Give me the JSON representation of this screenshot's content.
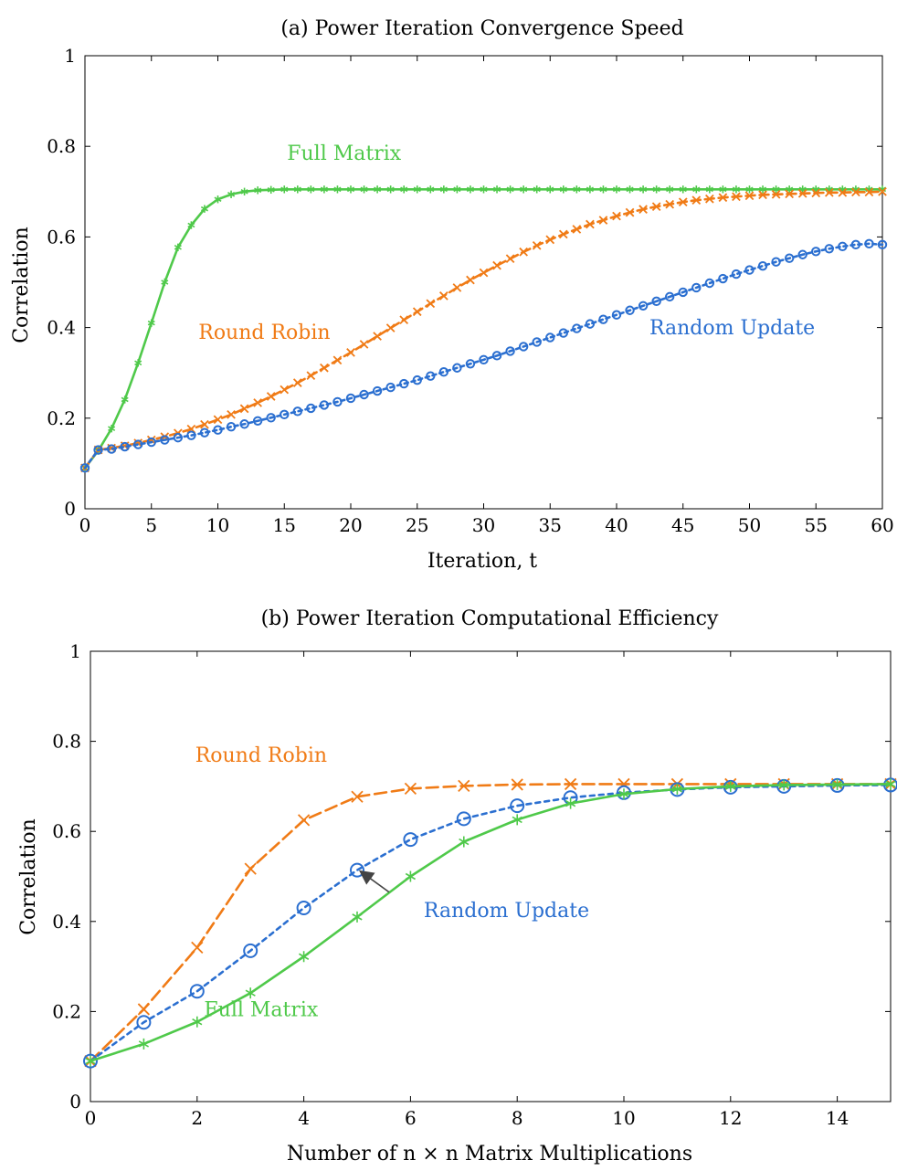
{
  "chart_data": [
    {
      "type": "line",
      "title": "(a) Power Iteration Convergence Speed",
      "xlabel": "Iteration, t",
      "ylabel": "Correlation",
      "xlim": [
        0,
        60
      ],
      "ylim": [
        0,
        1
      ],
      "xticks": [
        0,
        5,
        10,
        15,
        20,
        25,
        30,
        35,
        40,
        45,
        50,
        55,
        60
      ],
      "yticks": [
        0,
        0.2,
        0.4,
        0.6,
        0.8,
        1
      ],
      "ytick_labels": [
        "0",
        "0.2",
        "0.4",
        "0.6",
        "0.8",
        "1"
      ],
      "grid": false,
      "series": [
        {
          "name": "Full Matrix",
          "color": "#4fc94a",
          "marker": "asterisk",
          "dash": "solid",
          "label_anchor": [
            19.5,
            0.77
          ],
          "x": [
            0,
            1,
            2,
            3,
            4,
            5,
            6,
            7,
            8,
            9,
            10,
            11,
            12,
            13,
            14,
            15,
            16,
            17,
            18,
            19,
            20,
            21,
            22,
            23,
            24,
            25,
            26,
            27,
            28,
            29,
            30,
            31,
            32,
            33,
            34,
            35,
            36,
            37,
            38,
            39,
            40,
            41,
            42,
            43,
            44,
            45,
            46,
            47,
            48,
            49,
            50,
            51,
            52,
            53,
            54,
            55,
            56,
            57,
            58,
            59,
            60
          ],
          "values": [
            0.09,
            0.128,
            0.177,
            0.241,
            0.322,
            0.41,
            0.5,
            0.577,
            0.626,
            0.662,
            0.683,
            0.694,
            0.7,
            0.703,
            0.704,
            0.705,
            0.705,
            0.705,
            0.705,
            0.705,
            0.705,
            0.705,
            0.705,
            0.705,
            0.705,
            0.705,
            0.705,
            0.705,
            0.705,
            0.705,
            0.705,
            0.705,
            0.705,
            0.705,
            0.705,
            0.705,
            0.705,
            0.705,
            0.705,
            0.705,
            0.705,
            0.705,
            0.705,
            0.705,
            0.705,
            0.705,
            0.705,
            0.705,
            0.705,
            0.705,
            0.705,
            0.705,
            0.705,
            0.705,
            0.705,
            0.705,
            0.705,
            0.705,
            0.705,
            0.705,
            0.705
          ]
        },
        {
          "name": "Round Robin",
          "color": "#f07b16",
          "marker": "x",
          "dash": "dashed",
          "label_anchor": [
            13.5,
            0.375
          ],
          "x": [
            0,
            1,
            2,
            3,
            4,
            5,
            6,
            7,
            8,
            9,
            10,
            11,
            12,
            13,
            14,
            15,
            16,
            17,
            18,
            19,
            20,
            21,
            22,
            23,
            24,
            25,
            26,
            27,
            28,
            29,
            30,
            31,
            32,
            33,
            34,
            35,
            36,
            37,
            38,
            39,
            40,
            41,
            42,
            43,
            44,
            45,
            46,
            47,
            48,
            49,
            50,
            51,
            52,
            53,
            54,
            55,
            56,
            57,
            58,
            59,
            60
          ],
          "values": [
            0.09,
            0.13,
            0.134,
            0.139,
            0.145,
            0.152,
            0.159,
            0.167,
            0.176,
            0.186,
            0.197,
            0.208,
            0.221,
            0.234,
            0.248,
            0.263,
            0.278,
            0.294,
            0.311,
            0.328,
            0.345,
            0.363,
            0.381,
            0.399,
            0.417,
            0.435,
            0.453,
            0.47,
            0.488,
            0.505,
            0.521,
            0.537,
            0.552,
            0.567,
            0.581,
            0.594,
            0.606,
            0.617,
            0.628,
            0.637,
            0.646,
            0.654,
            0.661,
            0.667,
            0.672,
            0.677,
            0.681,
            0.684,
            0.687,
            0.689,
            0.691,
            0.693,
            0.694,
            0.695,
            0.696,
            0.697,
            0.698,
            0.698,
            0.699,
            0.699,
            0.7
          ]
        },
        {
          "name": "Random Update",
          "color": "#2b6fd0",
          "marker": "circle",
          "dash": "dotted",
          "label_anchor": [
            48.7,
            0.385
          ],
          "x": [
            0,
            1,
            2,
            3,
            4,
            5,
            6,
            7,
            8,
            9,
            10,
            11,
            12,
            13,
            14,
            15,
            16,
            17,
            18,
            19,
            20,
            21,
            22,
            23,
            24,
            25,
            26,
            27,
            28,
            29,
            30,
            31,
            32,
            33,
            34,
            35,
            36,
            37,
            38,
            39,
            40,
            41,
            42,
            43,
            44,
            45,
            46,
            47,
            48,
            49,
            50,
            51,
            52,
            53,
            54,
            55,
            56,
            57,
            58,
            59,
            60
          ],
          "values": [
            0.09,
            0.13,
            0.132,
            0.137,
            0.142,
            0.147,
            0.152,
            0.157,
            0.162,
            0.168,
            0.174,
            0.181,
            0.187,
            0.194,
            0.201,
            0.208,
            0.215,
            0.222,
            0.229,
            0.236,
            0.244,
            0.252,
            0.26,
            0.268,
            0.276,
            0.284,
            0.293,
            0.302,
            0.311,
            0.32,
            0.329,
            0.338,
            0.348,
            0.358,
            0.368,
            0.378,
            0.388,
            0.398,
            0.408,
            0.418,
            0.428,
            0.438,
            0.448,
            0.458,
            0.468,
            0.478,
            0.488,
            0.498,
            0.508,
            0.518,
            0.527,
            0.536,
            0.545,
            0.553,
            0.561,
            0.568,
            0.574,
            0.579,
            0.583,
            0.585,
            0.583
          ]
        }
      ]
    },
    {
      "type": "line",
      "title": "(b) Power Iteration Computational Efficiency",
      "xlabel": "Number of n × n Matrix Multiplications",
      "ylabel": "Correlation",
      "xlim": [
        0,
        15
      ],
      "ylim": [
        0,
        1
      ],
      "xticks": [
        0,
        2,
        4,
        6,
        8,
        10,
        12,
        14
      ],
      "yticks": [
        0,
        0.2,
        0.4,
        0.6,
        0.8,
        1
      ],
      "ytick_labels": [
        "0",
        "0.2",
        "0.4",
        "0.6",
        "0.8",
        "1"
      ],
      "grid": false,
      "series": [
        {
          "name": "Round Robin",
          "color": "#f07b16",
          "marker": "x",
          "dash": "dashed",
          "label_anchor": [
            3.2,
            0.755
          ],
          "x": [
            0,
            1,
            2,
            3,
            4,
            5,
            6,
            7,
            8,
            9,
            10,
            11,
            12,
            13,
            14,
            15
          ],
          "values": [
            0.09,
            0.205,
            0.342,
            0.517,
            0.625,
            0.677,
            0.695,
            0.701,
            0.704,
            0.705,
            0.705,
            0.705,
            0.705,
            0.705,
            0.705,
            0.705
          ]
        },
        {
          "name": "Random Update",
          "color": "#2b6fd0",
          "marker": "circle",
          "dash": "dotted",
          "label_anchor": [
            7.8,
            0.41
          ],
          "x": [
            0,
            1,
            2,
            3,
            4,
            5,
            6,
            7,
            8,
            9,
            10,
            11,
            12,
            13,
            14,
            15
          ],
          "values": [
            0.09,
            0.176,
            0.245,
            0.335,
            0.43,
            0.514,
            0.582,
            0.628,
            0.657,
            0.675,
            0.686,
            0.693,
            0.698,
            0.7,
            0.702,
            0.703
          ]
        },
        {
          "name": "Full Matrix",
          "color": "#4fc94a",
          "marker": "asterisk",
          "dash": "solid",
          "label_anchor": [
            3.2,
            0.19
          ],
          "x": [
            0,
            1,
            2,
            3,
            4,
            5,
            6,
            7,
            8,
            9,
            10,
            11,
            12,
            13,
            14,
            15
          ],
          "values": [
            0.09,
            0.128,
            0.177,
            0.241,
            0.322,
            0.41,
            0.5,
            0.577,
            0.626,
            0.662,
            0.683,
            0.694,
            0.7,
            0.703,
            0.704,
            0.705
          ]
        }
      ],
      "annotation": {
        "text": "Random Update",
        "arrow_from": [
          5.6,
          0.465
        ],
        "arrow_to": [
          5.1,
          0.508
        ]
      }
    }
  ]
}
